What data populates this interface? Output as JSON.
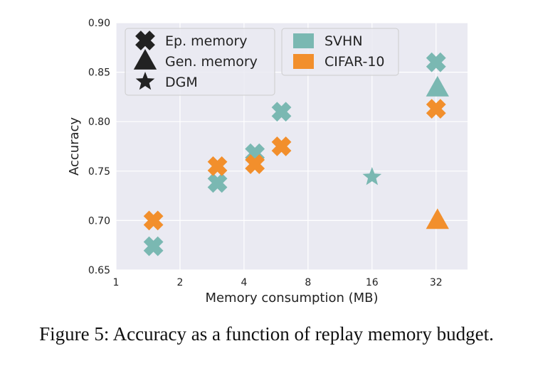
{
  "chart_data": {
    "type": "scatter",
    "xlabel": "Memory consumption (MB)",
    "ylabel": "Accuracy",
    "x_scale": "log2",
    "xlim": [
      1,
      45
    ],
    "ylim": [
      0.65,
      0.9
    ],
    "xticks": [
      {
        "value": 1,
        "label": "1"
      },
      {
        "value": 2,
        "label": "2"
      },
      {
        "value": 4,
        "label": "4"
      },
      {
        "value": 8,
        "label": "8"
      },
      {
        "value": 16,
        "label": "16"
      },
      {
        "value": 32,
        "label": "32"
      }
    ],
    "yticks": [
      {
        "value": 0.65,
        "label": "0.65"
      },
      {
        "value": 0.7,
        "label": "0.70"
      },
      {
        "value": 0.75,
        "label": "0.75"
      },
      {
        "value": 0.8,
        "label": "0.80"
      },
      {
        "value": 0.85,
        "label": "0.85"
      },
      {
        "value": 0.9,
        "label": "0.90"
      }
    ],
    "grid": true,
    "background": "#eaeaf2",
    "colors": {
      "SVHN": "#7ab8b2",
      "CIFAR-10": "#f28f2c"
    },
    "legend_markers": [
      {
        "marker": "x",
        "label": "Ep. memory"
      },
      {
        "marker": "triangle",
        "label": "Gen. memory"
      },
      {
        "marker": "star",
        "label": "DGM"
      }
    ],
    "legend_datasets": [
      {
        "dataset": "SVHN",
        "label": "SVHN"
      },
      {
        "dataset": "CIFAR-10",
        "label": "CIFAR-10"
      }
    ],
    "points": [
      {
        "dataset": "SVHN",
        "method": "x",
        "x": 1.5,
        "y": 0.674
      },
      {
        "dataset": "SVHN",
        "method": "x",
        "x": 3.0,
        "y": 0.738
      },
      {
        "dataset": "SVHN",
        "method": "x",
        "x": 4.5,
        "y": 0.768
      },
      {
        "dataset": "SVHN",
        "method": "x",
        "x": 6.0,
        "y": 0.81
      },
      {
        "dataset": "SVHN",
        "method": "x",
        "x": 32,
        "y": 0.86
      },
      {
        "dataset": "SVHN",
        "method": "triangle",
        "x": 32.5,
        "y": 0.834
      },
      {
        "dataset": "SVHN",
        "method": "star",
        "x": 16,
        "y": 0.744
      },
      {
        "dataset": "CIFAR-10",
        "method": "x",
        "x": 1.5,
        "y": 0.7
      },
      {
        "dataset": "CIFAR-10",
        "method": "x",
        "x": 3.0,
        "y": 0.755
      },
      {
        "dataset": "CIFAR-10",
        "method": "x",
        "x": 4.5,
        "y": 0.757
      },
      {
        "dataset": "CIFAR-10",
        "method": "x",
        "x": 6.0,
        "y": 0.775
      },
      {
        "dataset": "CIFAR-10",
        "method": "x",
        "x": 32,
        "y": 0.813
      },
      {
        "dataset": "CIFAR-10",
        "method": "triangle",
        "x": 32.5,
        "y": 0.7
      }
    ]
  },
  "caption": "Figure 5: Accuracy as a function of replay memory budget."
}
